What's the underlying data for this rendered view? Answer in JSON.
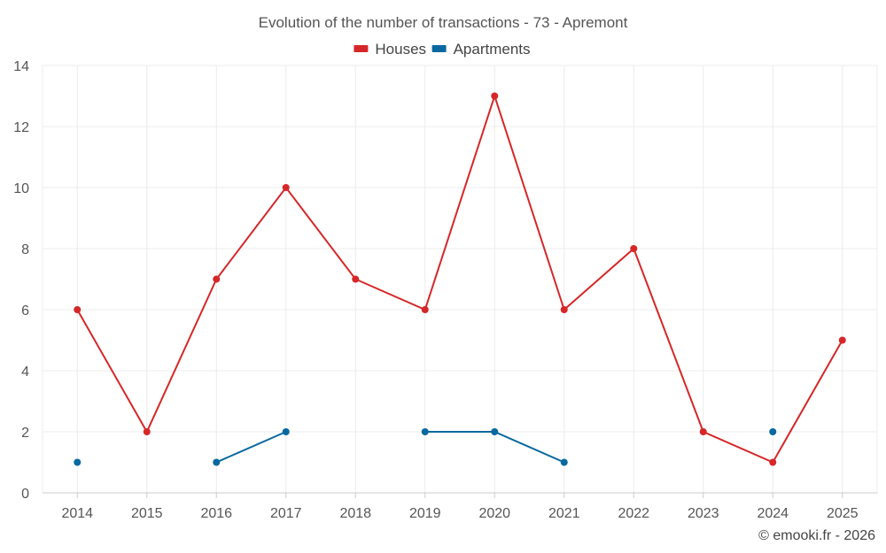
{
  "chart_data": {
    "type": "line",
    "title": "Evolution of the number of transactions - 73 - Apremont",
    "xlabel": "",
    "ylabel": "",
    "categories": [
      "2014",
      "2015",
      "2016",
      "2017",
      "2018",
      "2019",
      "2020",
      "2021",
      "2022",
      "2023",
      "2024",
      "2025"
    ],
    "ylim": [
      0,
      14
    ],
    "yticks": [
      0,
      2,
      4,
      6,
      8,
      10,
      12,
      14
    ],
    "grid": true,
    "legend_position": "top-center",
    "series": [
      {
        "name": "Houses",
        "color": "#d62728",
        "values": [
          6,
          2,
          7,
          10,
          7,
          6,
          13,
          6,
          8,
          2,
          1,
          5
        ]
      },
      {
        "name": "Apartments",
        "color": "#0868a0",
        "values": [
          1,
          null,
          1,
          2,
          null,
          2,
          2,
          1,
          null,
          null,
          2,
          null
        ]
      }
    ]
  },
  "credit": "© emooki.fr - 2026"
}
